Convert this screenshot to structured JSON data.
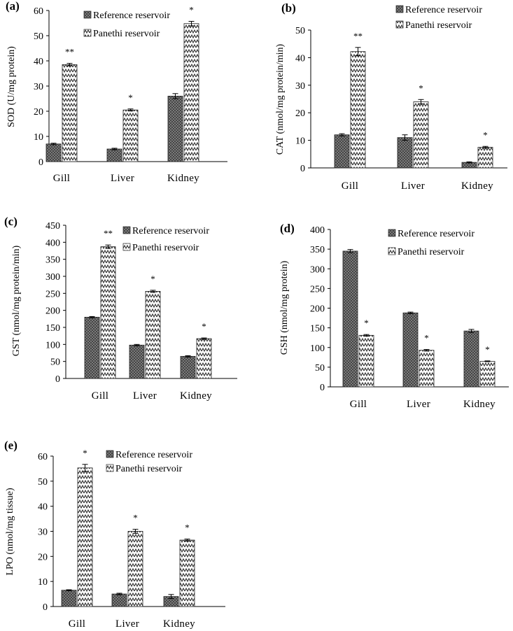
{
  "figure": {
    "colors": {
      "reference_fill": "#6e6e6e",
      "panethi_stroke": "#333333",
      "axis": "#000000"
    }
  },
  "chart_data": [
    {
      "id": "a",
      "type": "bar",
      "panel_label": "(a)",
      "categories": [
        "Gill",
        "Liver",
        "Kidney"
      ],
      "series": [
        {
          "name": "Reference reservoir",
          "values": [
            7,
            5,
            26
          ],
          "errors": [
            0.3,
            0.3,
            1.0
          ]
        },
        {
          "name": "Panethi reservoir",
          "values": [
            38.5,
            20.5,
            54.8
          ],
          "errors": [
            0.5,
            0.4,
            0.9
          ]
        }
      ],
      "significance": [
        "**",
        "*",
        "*"
      ],
      "ylabel": "SOD (U/mg protein)",
      "xlabel": "",
      "title": "",
      "ylim": [
        0,
        60
      ],
      "yticks": [
        0,
        10,
        20,
        30,
        40,
        50,
        60
      ],
      "legend": [
        "Reference reservoir",
        "Panethi reservoir"
      ]
    },
    {
      "id": "b",
      "type": "bar",
      "panel_label": "(b)",
      "categories": [
        "Gill",
        "Liver",
        "Kidney"
      ],
      "series": [
        {
          "name": "Reference reservoir",
          "values": [
            12,
            11,
            2
          ],
          "errors": [
            0.4,
            1.0,
            0.2
          ]
        },
        {
          "name": "Panethi reservoir",
          "values": [
            42.2,
            24,
            7.5
          ],
          "errors": [
            1.5,
            0.8,
            0.3
          ]
        }
      ],
      "significance": [
        "**",
        "*",
        "*"
      ],
      "ylabel": "CAT (nmol/mg protein/min)",
      "xlabel": "",
      "title": "",
      "ylim": [
        0,
        50
      ],
      "yticks": [
        0,
        10,
        20,
        30,
        40,
        50
      ],
      "legend": [
        "Reference reservoir",
        "Panethi reservoir"
      ]
    },
    {
      "id": "c",
      "type": "bar",
      "panel_label": "(c)",
      "categories": [
        "Gill",
        "Liver",
        "Kidney"
      ],
      "series": [
        {
          "name": "Reference reservoir",
          "values": [
            180,
            98,
            65
          ],
          "errors": [
            2,
            2,
            2
          ]
        },
        {
          "name": "Panethi reservoir",
          "values": [
            387,
            256,
            117
          ],
          "errors": [
            5,
            3,
            2
          ]
        }
      ],
      "significance": [
        "**",
        "*",
        "*"
      ],
      "ylabel": "GST (nmol/mg protein/min)",
      "xlabel": "",
      "title": "",
      "ylim": [
        0,
        450
      ],
      "yticks": [
        0,
        50,
        100,
        150,
        200,
        250,
        300,
        350,
        400,
        450
      ],
      "legend": [
        "Reference reservoir",
        "Panethi reservoir"
      ]
    },
    {
      "id": "d",
      "type": "bar",
      "panel_label": "(d)",
      "categories": [
        "Gill",
        "Liver",
        "Kidney"
      ],
      "series": [
        {
          "name": "Reference reservoir",
          "values": [
            345,
            188,
            142
          ],
          "errors": [
            4,
            2,
            4
          ]
        },
        {
          "name": "Panethi reservoir",
          "values": [
            131,
            93,
            65
          ],
          "errors": [
            2,
            2,
            1
          ]
        }
      ],
      "significance": [
        "*",
        "*",
        "*"
      ],
      "ylabel": "GSH (nmol/mg protein)",
      "xlabel": "",
      "title": "",
      "ylim": [
        0,
        400
      ],
      "yticks": [
        0,
        50,
        100,
        150,
        200,
        250,
        300,
        350,
        400
      ],
      "legend": [
        "Reference reservoir",
        "Panethi reservoir"
      ]
    },
    {
      "id": "e",
      "type": "bar",
      "panel_label": "(e)",
      "categories": [
        "Gill",
        "Liver",
        "Kidney"
      ],
      "series": [
        {
          "name": "Reference reservoir",
          "values": [
            6.5,
            5,
            4
          ],
          "errors": [
            0.2,
            0.3,
            0.8
          ]
        },
        {
          "name": "Panethi reservoir",
          "values": [
            55.3,
            30,
            26.5
          ],
          "errors": [
            1.4,
            0.8,
            0.4
          ]
        }
      ],
      "significance": [
        "*",
        "*",
        "*"
      ],
      "ylabel": "LPO (nmol/mg tissue)",
      "xlabel": "",
      "title": "",
      "ylim": [
        0,
        60
      ],
      "yticks": [
        0,
        10,
        20,
        30,
        40,
        50,
        60
      ],
      "legend": [
        "Reference reservoir",
        "Panethi reservoir"
      ]
    }
  ]
}
